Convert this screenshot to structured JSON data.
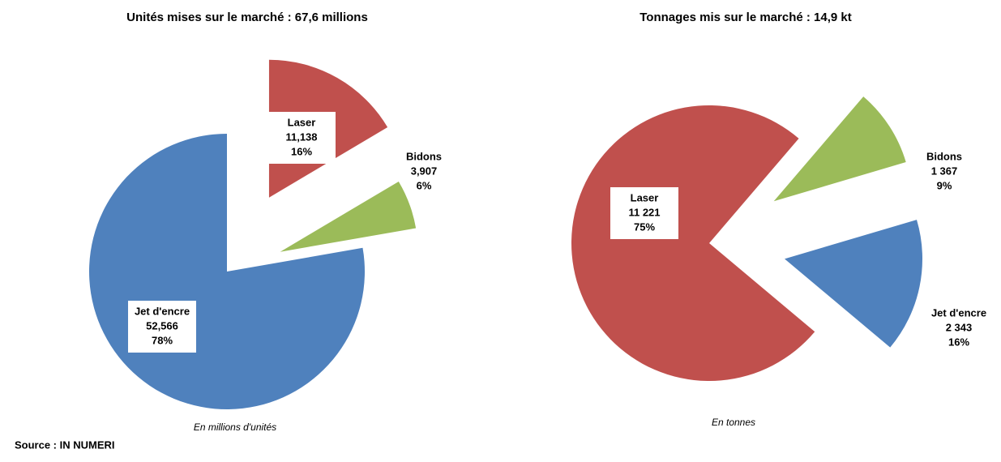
{
  "chart_data": [
    {
      "type": "pie",
      "title": "Unités  mises sur le marché : 67,6 millions",
      "categories": [
        "Laser",
        "Bidons",
        "Jet d'encre"
      ],
      "values": [
        11.138,
        3.907,
        52.566
      ],
      "value_labels": [
        "11,138",
        "3,907",
        "52,566"
      ],
      "percent_labels": [
        "16%",
        "6%",
        "78%"
      ],
      "colors": [
        "#c0504d",
        "#9bbb59",
        "#4f81bd"
      ],
      "note": "En millions d'unités"
    },
    {
      "type": "pie",
      "title": "Tonnages mis sur le marché : 14,9 kt",
      "categories": [
        "Laser",
        "Bidons",
        "Jet d'encre"
      ],
      "values": [
        11221,
        1367,
        2343
      ],
      "value_labels": [
        "11 221",
        "1 367",
        "2 343"
      ],
      "percent_labels": [
        "75%",
        "9%",
        "16%"
      ],
      "colors": [
        "#c0504d",
        "#9bbb59",
        "#4f81bd"
      ],
      "note": "En tonnes"
    }
  ],
  "source": "Source : IN NUMERI"
}
